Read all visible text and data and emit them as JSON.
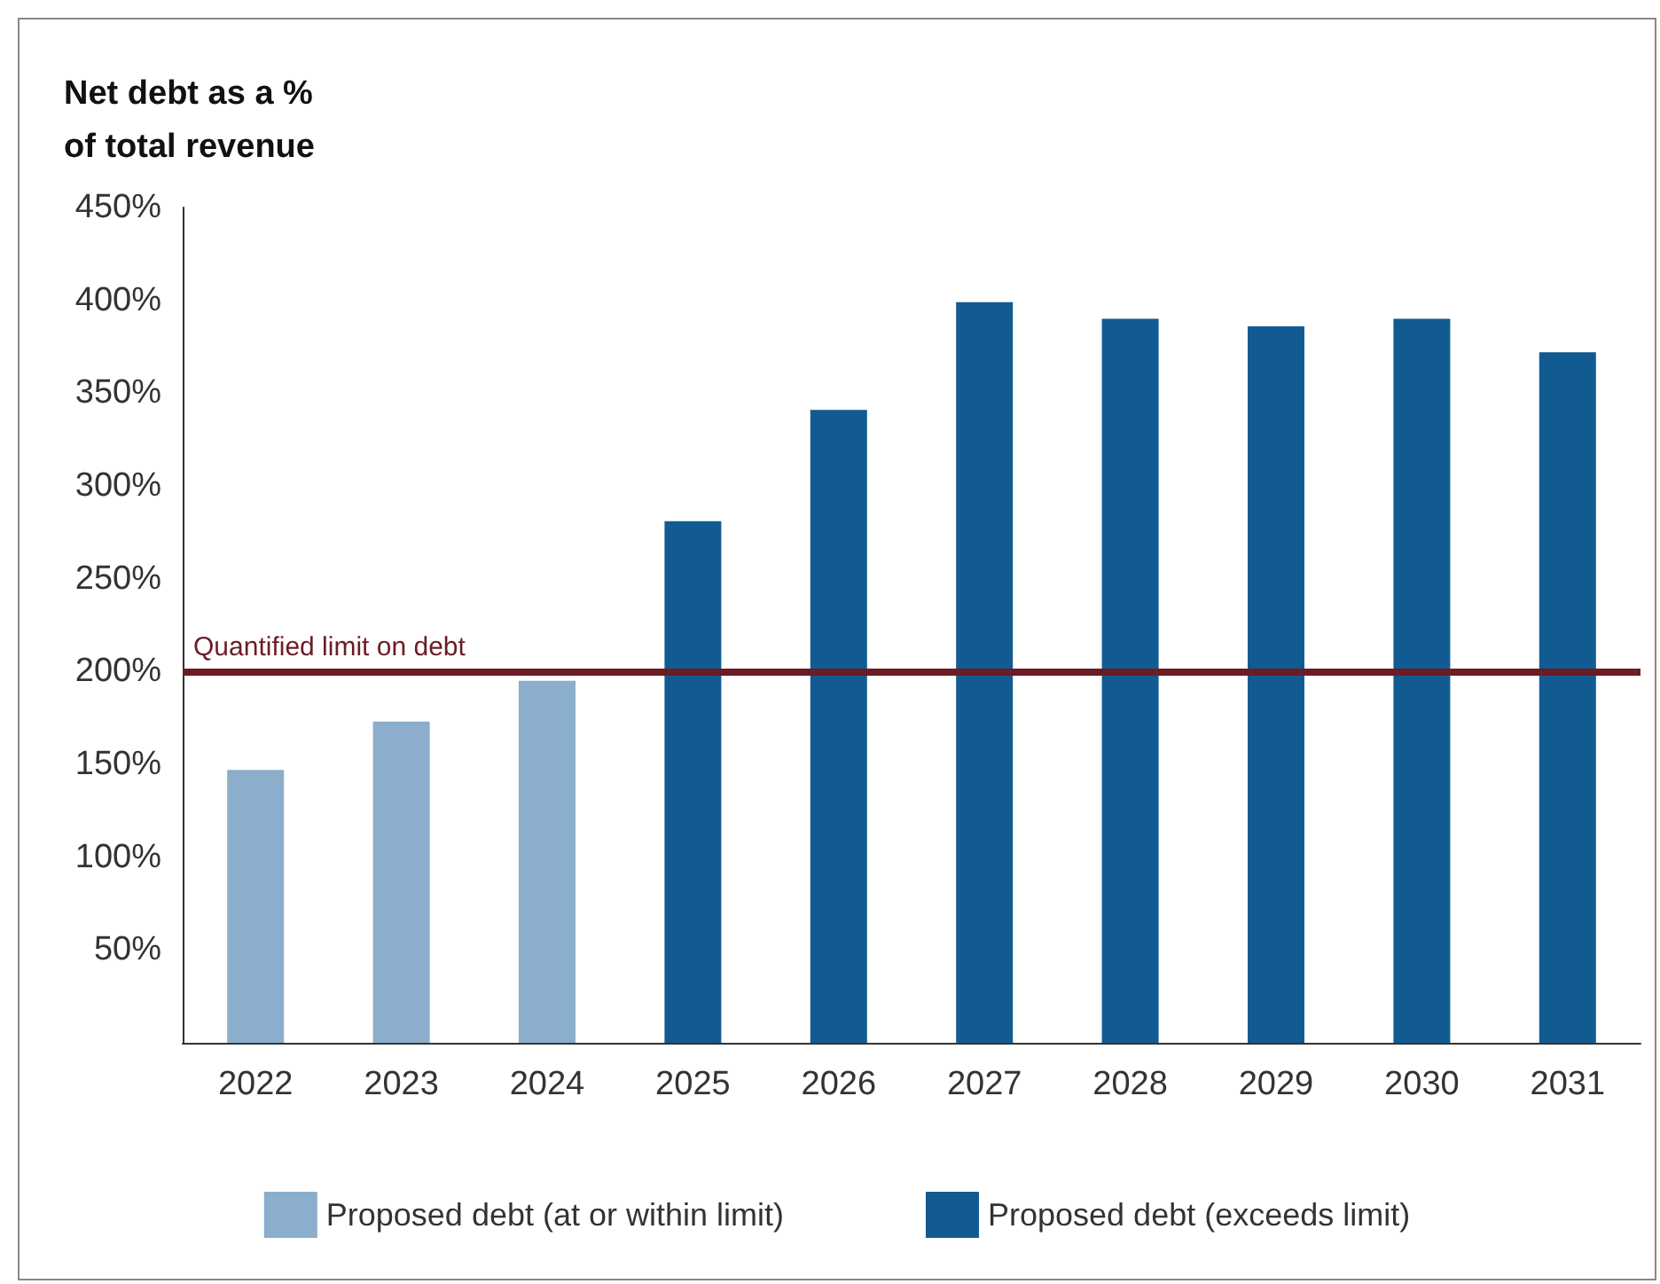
{
  "chart_data": {
    "type": "bar",
    "title": "Net debt as a %\nof total revenue",
    "categories": [
      "2022",
      "2023",
      "2024",
      "2025",
      "2026",
      "2027",
      "2028",
      "2029",
      "2030",
      "2031"
    ],
    "series": [
      {
        "name": "Proposed debt (at or within limit)",
        "color": "#8aaecb",
        "values": [
          147,
          173,
          195,
          null,
          null,
          null,
          null,
          null,
          null,
          null
        ]
      },
      {
        "name": "Proposed debt (exceeds limit)",
        "color": "#125b92",
        "values": [
          null,
          null,
          null,
          281,
          341,
          399,
          390,
          386,
          390,
          372
        ]
      }
    ],
    "ylim": [
      0,
      450
    ],
    "yticks": [
      {
        "value": 0,
        "label": null
      },
      {
        "value": 50,
        "label": "50%"
      },
      {
        "value": 100,
        "label": "100%"
      },
      {
        "value": 150,
        "label": "150%"
      },
      {
        "value": 200,
        "label": "200%"
      },
      {
        "value": 250,
        "label": "250%"
      },
      {
        "value": 300,
        "label": "300%"
      },
      {
        "value": 350,
        "label": "350%"
      },
      {
        "value": 400,
        "label": "400%"
      },
      {
        "value": 450,
        "label": "450%"
      }
    ],
    "ref_lines": [
      {
        "axis": "y",
        "value": 200,
        "label": "Quantified limit on debt",
        "color": "#6b1c24"
      }
    ],
    "grid": false,
    "legend": "bottom"
  }
}
